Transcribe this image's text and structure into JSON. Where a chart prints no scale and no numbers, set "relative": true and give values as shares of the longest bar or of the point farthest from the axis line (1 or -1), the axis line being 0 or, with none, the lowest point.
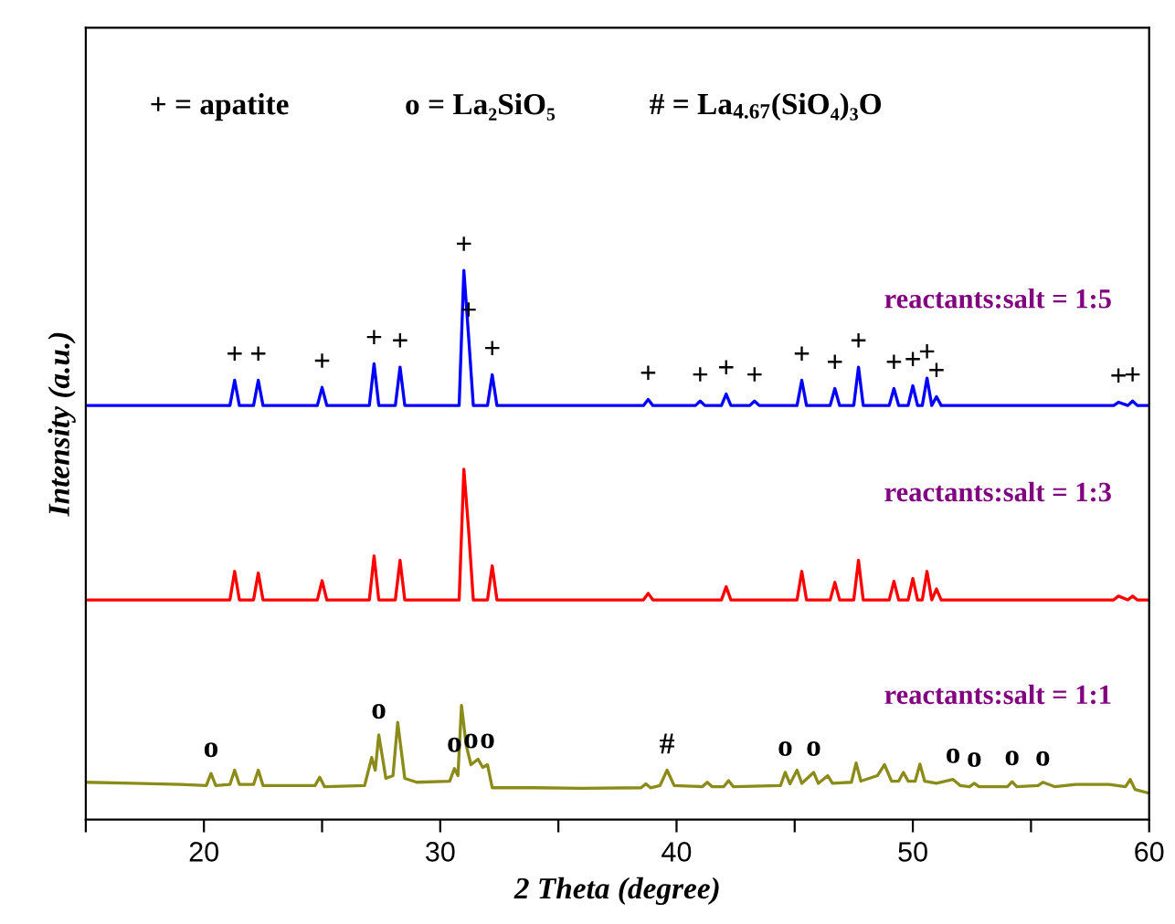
{
  "chart_data": {
    "type": "line",
    "relative": true,
    "xlabel": "2 Theta (degree)",
    "ylabel": "Intensity (a.u.)",
    "xlim": [
      15,
      60
    ],
    "xticks": [
      {
        "value": 15,
        "label": null
      },
      20,
      {
        "value": 25,
        "label": null
      },
      30,
      {
        "value": 35,
        "label": null
      },
      40,
      {
        "value": 45,
        "label": null
      },
      50,
      {
        "value": 55,
        "label": null
      },
      60
    ],
    "tick_labels": "x",
    "grid": false,
    "legend": false,
    "marker": "none",
    "line_style": "solid",
    "series": [
      {
        "name": "reactants:salt = 1:5",
        "color": "#0000ff",
        "x": [
          15,
          21.1,
          21.3,
          21.5,
          22.1,
          22.3,
          22.5,
          24.8,
          25.0,
          25.2,
          27.0,
          27.2,
          27.4,
          28.1,
          28.3,
          28.5,
          30.8,
          31.0,
          31.2,
          31.4,
          32.0,
          32.2,
          32.4,
          38.6,
          38.8,
          39.0,
          40.8,
          41.0,
          41.2,
          41.9,
          42.1,
          42.3,
          43.1,
          43.3,
          43.5,
          45.1,
          45.3,
          45.5,
          46.5,
          46.7,
          46.9,
          47.5,
          47.7,
          47.9,
          49.0,
          49.2,
          49.4,
          49.8,
          50.0,
          50.2,
          50.4,
          50.6,
          50.8,
          51.0,
          51.2,
          58.5,
          58.7,
          59.1,
          59.3,
          59.5,
          60
        ],
        "values": [
          0.754,
          0.754,
          0.8,
          0.754,
          0.754,
          0.8,
          0.754,
          0.754,
          0.787,
          0.754,
          0.754,
          0.83,
          0.754,
          0.754,
          0.824,
          0.754,
          0.754,
          1.0,
          0.88,
          0.754,
          0.754,
          0.81,
          0.754,
          0.754,
          0.765,
          0.754,
          0.754,
          0.762,
          0.754,
          0.754,
          0.775,
          0.754,
          0.754,
          0.762,
          0.754,
          0.754,
          0.8,
          0.754,
          0.754,
          0.785,
          0.754,
          0.754,
          0.824,
          0.754,
          0.754,
          0.785,
          0.754,
          0.754,
          0.79,
          0.754,
          0.754,
          0.804,
          0.754,
          0.77,
          0.754,
          0.754,
          0.76,
          0.754,
          0.762,
          0.754,
          0.754
        ]
      },
      {
        "name": "reactants:salt = 1:3",
        "color": "#ff0000",
        "x": [
          15,
          21.1,
          21.3,
          21.5,
          22.1,
          22.3,
          22.5,
          24.8,
          25.0,
          25.2,
          27.0,
          27.2,
          27.4,
          28.1,
          28.3,
          28.5,
          30.8,
          31.0,
          31.2,
          31.4,
          32.0,
          32.2,
          32.4,
          38.6,
          38.8,
          39.0,
          41.9,
          42.1,
          42.3,
          45.1,
          45.3,
          45.5,
          46.5,
          46.7,
          46.9,
          47.5,
          47.7,
          47.9,
          49.0,
          49.2,
          49.4,
          49.8,
          50.0,
          50.2,
          50.4,
          50.6,
          50.8,
          51.0,
          51.2,
          58.5,
          58.7,
          59.1,
          59.3,
          59.5,
          60
        ],
        "values": [
          0.4,
          0.4,
          0.452,
          0.4,
          0.4,
          0.449,
          0.4,
          0.4,
          0.435,
          0.4,
          0.4,
          0.48,
          0.4,
          0.4,
          0.472,
          0.4,
          0.4,
          0.638,
          0.528,
          0.4,
          0.4,
          0.462,
          0.4,
          0.4,
          0.412,
          0.4,
          0.4,
          0.424,
          0.4,
          0.4,
          0.452,
          0.4,
          0.4,
          0.432,
          0.4,
          0.4,
          0.472,
          0.4,
          0.4,
          0.434,
          0.4,
          0.4,
          0.439,
          0.4,
          0.4,
          0.452,
          0.4,
          0.42,
          0.4,
          0.4,
          0.407,
          0.4,
          0.407,
          0.4,
          0.4
        ]
      },
      {
        "name": "reactants:salt = 1:1",
        "color": "#8b8b1a",
        "x": [
          15,
          17,
          19,
          20.1,
          20.3,
          20.5,
          21.1,
          21.3,
          21.5,
          22.1,
          22.3,
          22.5,
          24.7,
          24.9,
          25.1,
          26.8,
          27.1,
          27.25,
          27.4,
          27.7,
          28.0,
          28.2,
          28.5,
          29,
          30.4,
          30.6,
          30.75,
          30.9,
          31.1,
          31.3,
          31.6,
          31.8,
          32.0,
          32.2,
          34,
          36,
          38.5,
          38.7,
          38.9,
          39.3,
          39.6,
          39.9,
          41.1,
          41.3,
          41.5,
          42.0,
          42.2,
          42.4,
          44.4,
          44.6,
          44.8,
          45.1,
          45.3,
          45.8,
          46.0,
          46.4,
          46.6,
          47.4,
          47.6,
          47.8,
          48.5,
          48.8,
          49.1,
          49.4,
          49.6,
          49.8,
          50.1,
          50.3,
          50.5,
          51.0,
          51.7,
          52,
          52.4,
          52.6,
          52.8,
          54.0,
          54.2,
          54.4,
          55.3,
          55.5,
          56,
          56.9,
          58.3,
          59.0,
          59.2,
          59.4,
          60
        ],
        "values": [
          0.068,
          0.066,
          0.064,
          0.062,
          0.084,
          0.062,
          0.064,
          0.09,
          0.064,
          0.064,
          0.09,
          0.062,
          0.062,
          0.077,
          0.06,
          0.062,
          0.113,
          0.09,
          0.154,
          0.075,
          0.08,
          0.177,
          0.075,
          0.068,
          0.07,
          0.093,
          0.08,
          0.208,
          0.135,
          0.1,
          0.11,
          0.095,
          0.1,
          0.058,
          0.058,
          0.057,
          0.058,
          0.065,
          0.058,
          0.062,
          0.09,
          0.062,
          0.06,
          0.068,
          0.06,
          0.06,
          0.071,
          0.06,
          0.062,
          0.086,
          0.065,
          0.09,
          0.066,
          0.086,
          0.066,
          0.08,
          0.066,
          0.068,
          0.103,
          0.07,
          0.08,
          0.1,
          0.07,
          0.07,
          0.086,
          0.07,
          0.07,
          0.101,
          0.07,
          0.066,
          0.073,
          0.062,
          0.06,
          0.066,
          0.06,
          0.06,
          0.069,
          0.06,
          0.062,
          0.068,
          0.06,
          0.064,
          0.064,
          0.06,
          0.073,
          0.055,
          0.048
        ]
      }
    ],
    "annotations": [
      "+ = apatite",
      "o = La₂SiO₅",
      "# = La$_{4.67}$(SiO₄)₃O",
      {
        "text": "+",
        "x": 21.3,
        "y": 0.8
      },
      {
        "text": "+",
        "x": 22.3,
        "y": 0.8
      },
      {
        "text": "+",
        "x": 25.0,
        "y": 0.787
      },
      {
        "text": "+",
        "x": 27.2,
        "y": 0.83
      },
      {
        "text": "+",
        "x": 28.3,
        "y": 0.824
      },
      {
        "text": "+",
        "x": 31.0,
        "y": 1.0
      },
      {
        "text": "+",
        "x": 31.2,
        "y": 0.88
      },
      {
        "text": "+",
        "x": 32.2,
        "y": 0.81
      },
      {
        "text": "+",
        "x": 38.8,
        "y": 0.765
      },
      {
        "text": "+",
        "x": 41.0,
        "y": 0.762
      },
      {
        "text": "+",
        "x": 42.1,
        "y": 0.775
      },
      {
        "text": "+",
        "x": 43.3,
        "y": 0.762
      },
      {
        "text": "+",
        "x": 45.3,
        "y": 0.8
      },
      {
        "text": "+",
        "x": 46.7,
        "y": 0.785
      },
      {
        "text": "+",
        "x": 47.7,
        "y": 0.824
      },
      {
        "text": "+",
        "x": 49.2,
        "y": 0.785
      },
      {
        "text": "+",
        "x": 50.0,
        "y": 0.79
      },
      {
        "text": "+",
        "x": 50.6,
        "y": 0.804
      },
      {
        "text": "+",
        "x": 51.0,
        "y": 0.77
      },
      {
        "text": "+",
        "x": 58.7,
        "y": 0.76
      },
      {
        "text": "+",
        "x": 59.3,
        "y": 0.762
      },
      {
        "text": "o",
        "x": 20.3,
        "y": 0.084
      },
      {
        "text": "o",
        "x": 27.4,
        "y": 0.154
      },
      {
        "text": "o",
        "x": 30.6,
        "y": 0.093
      },
      {
        "text": "o",
        "x": 31.3,
        "y": 0.1
      },
      {
        "text": "o",
        "x": 32.0,
        "y": 0.1
      },
      {
        "text": "#",
        "x": 39.6,
        "y": 0.09
      },
      {
        "text": "o",
        "x": 44.6,
        "y": 0.086
      },
      {
        "text": "o",
        "x": 45.8,
        "y": 0.086
      },
      {
        "text": "o",
        "x": 51.7,
        "y": 0.073
      },
      {
        "text": "o",
        "x": 52.6,
        "y": 0.066
      },
      {
        "text": "o",
        "x": 54.2,
        "y": 0.069
      },
      {
        "text": "o",
        "x": 55.5,
        "y": 0.068
      }
    ]
  }
}
